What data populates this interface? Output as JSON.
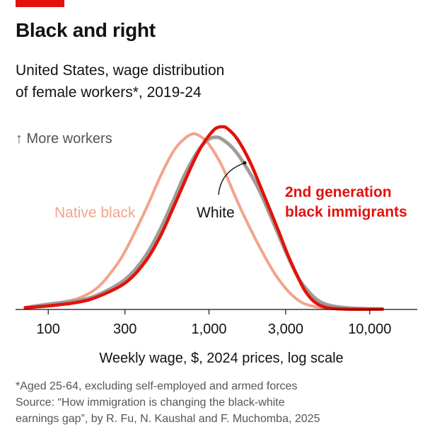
{
  "header": {
    "title": "Black and right",
    "subtitle_line1": "United States, wage distribution",
    "subtitle_line2": "of female workers*, 2019-24"
  },
  "footer": {
    "note": "*Aged 25-64, excluding self-employed and armed forces",
    "source_line1": "Source: “How immigration is changing the black-white",
    "source_line2": "earnings gap”, by R. Fu, N. Kaushal and F. Muchomba, 2025"
  },
  "colors": {
    "accent": "#e3120b",
    "native_black": "#f2a48c",
    "white": "#a09c97",
    "second_gen": "#e3120b",
    "text": "#121212",
    "muted": "#555555"
  },
  "chart_data": {
    "type": "area",
    "x_scale": "log",
    "xlim": [
      70,
      14000
    ],
    "ylim": [
      0,
      1.06
    ],
    "xlabel": "Weekly wage, $, 2024 prices, log scale",
    "ylabel": "↑ More workers",
    "x_ticks": [
      100,
      300,
      1000,
      3000,
      10000
    ],
    "x_tick_labels": [
      "100",
      "300",
      "1,000",
      "3,000",
      "10,000"
    ],
    "grid": false,
    "legend": "direct labels",
    "series": [
      {
        "name": "Native black",
        "color": "#f2a48c",
        "x": [
          72,
          100,
          150,
          200,
          250,
          300,
          400,
          500,
          600,
          700,
          800,
          900,
          1000,
          1200,
          1400,
          1600,
          2000,
          2500,
          3000,
          3500,
          4000,
          5000,
          7000,
          12000
        ],
        "y": [
          0.01,
          0.03,
          0.06,
          0.12,
          0.22,
          0.33,
          0.56,
          0.76,
          0.9,
          0.97,
          1.0,
          0.98,
          0.94,
          0.82,
          0.68,
          0.56,
          0.38,
          0.22,
          0.12,
          0.06,
          0.03,
          0.01,
          0.0,
          0.0
        ]
      },
      {
        "name": "White",
        "color": "#a09c97",
        "x": [
          72,
          100,
          150,
          200,
          300,
          400,
          500,
          600,
          700,
          800,
          900,
          1000,
          1100,
          1200,
          1400,
          1600,
          2000,
          2500,
          3000,
          3500,
          4000,
          5000,
          7000,
          12000
        ],
        "y": [
          0.01,
          0.03,
          0.05,
          0.08,
          0.17,
          0.3,
          0.46,
          0.62,
          0.76,
          0.86,
          0.93,
          0.97,
          0.98,
          0.97,
          0.92,
          0.85,
          0.7,
          0.5,
          0.33,
          0.2,
          0.12,
          0.04,
          0.01,
          0.0
        ]
      },
      {
        "name": "2nd generation black immigrants",
        "color": "#e3120b",
        "x": [
          72,
          100,
          150,
          200,
          300,
          400,
          500,
          600,
          700,
          800,
          900,
          1000,
          1100,
          1200,
          1300,
          1500,
          1800,
          2200,
          2700,
          3200,
          4000,
          5000,
          7000,
          12000
        ],
        "y": [
          0.01,
          0.02,
          0.04,
          0.07,
          0.15,
          0.27,
          0.42,
          0.58,
          0.72,
          0.84,
          0.93,
          0.99,
          1.03,
          1.04,
          1.03,
          0.97,
          0.84,
          0.65,
          0.45,
          0.28,
          0.1,
          0.02,
          0.0,
          0.0
        ]
      }
    ],
    "annotations": [
      {
        "series": "Native black",
        "text": "Native black"
      },
      {
        "series": "White",
        "text": "White"
      },
      {
        "series": "2nd generation black immigrants",
        "text_line1": "2nd generation",
        "text_line2": "black immigrants"
      }
    ]
  }
}
